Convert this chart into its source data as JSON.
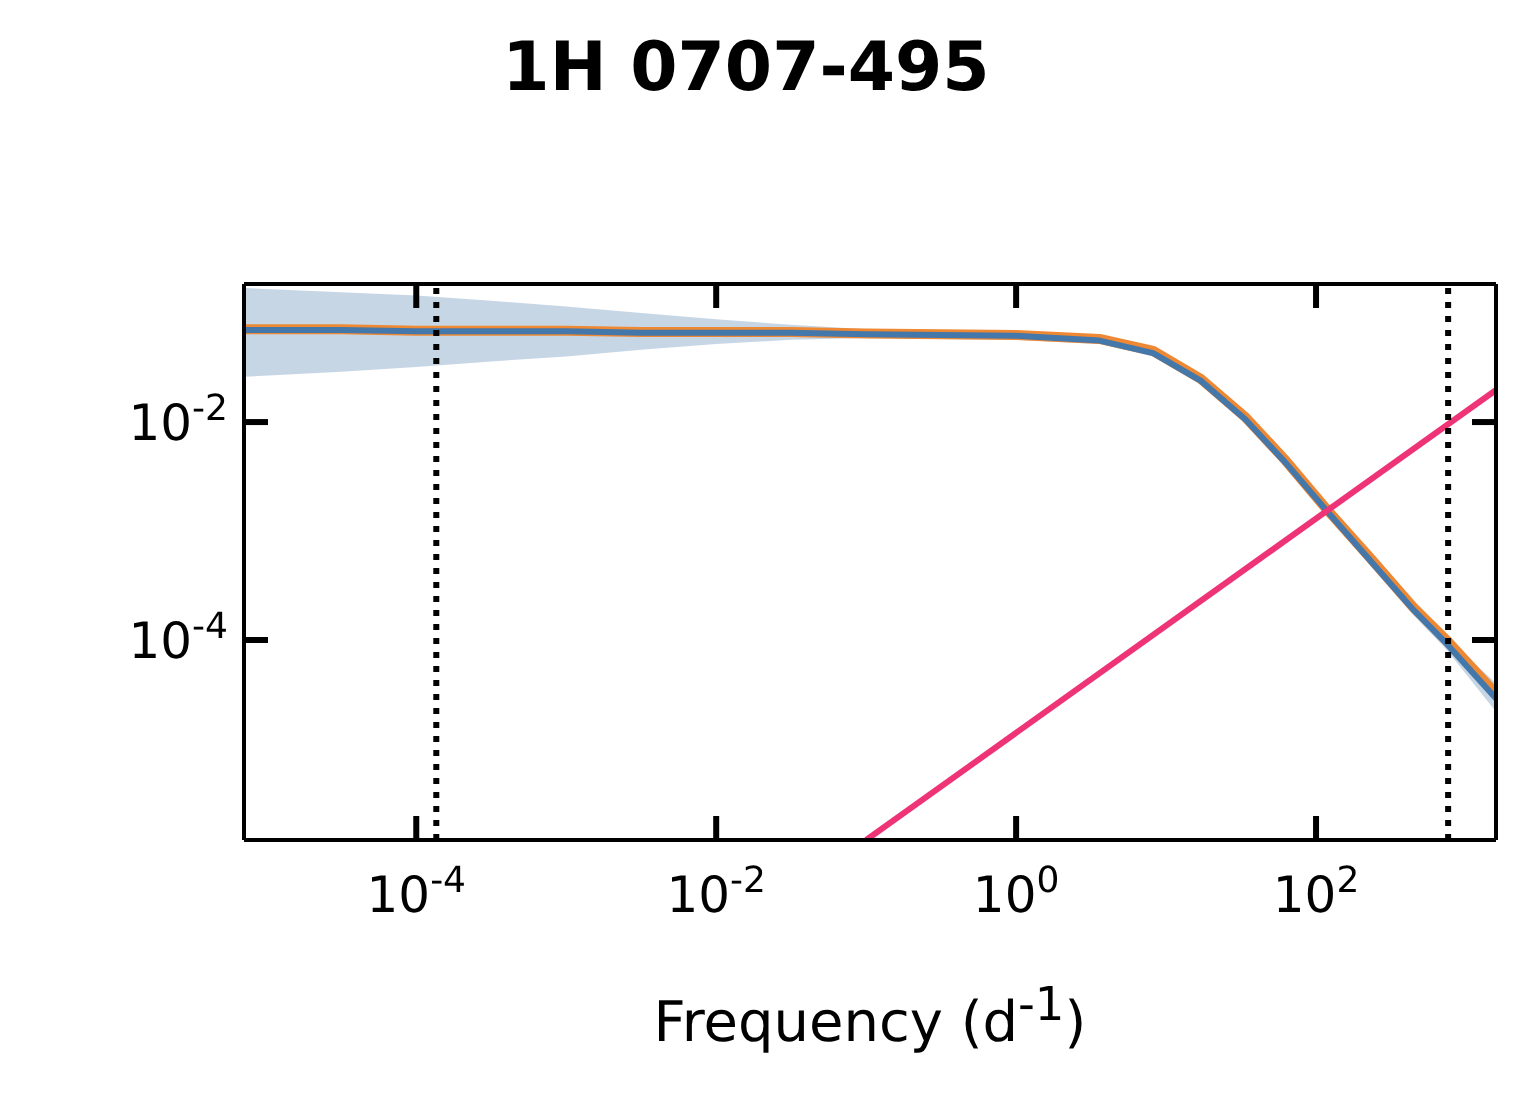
{
  "chart_data": {
    "type": "line",
    "title": "1H 0707-495",
    "xlabel": "Frequency (d$^{-1}$)",
    "log": "xy",
    "marker": "none",
    "line_style": "solid",
    "xlim": [
      7.1e-06,
      1585
    ],
    "ylim": [
      1.46e-06,
      0.185
    ],
    "xticks": [
      {
        "value": 0.0001,
        "label": "10$^{-4}$"
      },
      {
        "value": 0.01,
        "label": "10$^{-2}$"
      },
      {
        "value": 1,
        "label": "10$^{0}$"
      },
      {
        "value": 100,
        "label": "10$^{2}$"
      }
    ],
    "yticks": [
      {
        "value": 0.01,
        "label": "10$^{-2}$"
      },
      {
        "value": 0.0001,
        "label": "10$^{-4}$"
      }
    ],
    "x": [
      7.1e-06,
      3.16e-05,
      0.0001,
      0.000316,
      0.001,
      0.00316,
      0.01,
      0.0316,
      0.1,
      0.316,
      1,
      3.6,
      8.2,
      17,
      34,
      63,
      117,
      240,
      445,
      740,
      1585
    ],
    "series": [
      {
        "color": "#ee8833",
        "values": [
          0.071,
          0.071,
          0.069,
          0.069,
          0.069,
          0.067,
          0.067,
          0.067,
          0.065,
          0.064,
          0.063,
          0.058,
          0.045,
          0.025,
          0.011,
          0.0044,
          0.0016,
          0.00053,
          0.0002,
          0.0001,
          3.2e-05
        ]
      },
      {
        "color": "#4477aa",
        "values": [
          0.07,
          0.07,
          0.068,
          0.068,
          0.068,
          0.066,
          0.066,
          0.066,
          0.064,
          0.063,
          0.062,
          0.056,
          0.043,
          0.024,
          0.0105,
          0.0042,
          0.00155,
          0.0005,
          0.00019,
          9.3e-05,
          2.9e-05
        ],
        "lower": [
          0.026,
          0.029,
          0.032,
          0.036,
          0.04,
          0.046,
          0.052,
          0.057,
          0.059,
          0.058,
          0.057,
          0.052,
          0.04,
          0.022,
          0.0097,
          0.0039,
          0.00143,
          0.00045,
          0.00017,
          8.2e-05,
          2.2e-05
        ],
        "upper": [
          0.17,
          0.155,
          0.145,
          0.13,
          0.115,
          0.1,
          0.088,
          0.078,
          0.071,
          0.068,
          0.067,
          0.06,
          0.046,
          0.026,
          0.0114,
          0.0045,
          0.00168,
          0.00056,
          0.00021,
          0.000106,
          4e-05
        ]
      },
      {
        "color": "#ee3377",
        "x": [
          0.1,
          1585
        ],
        "values": [
          1.46e-06,
          0.0197
        ]
      }
    ],
    "ref_lines": [
      {
        "axis": "x",
        "value": 0.000136,
        "color": "#000000",
        "line_style": "dotted"
      },
      {
        "axis": "x",
        "value": 760,
        "color": "#000000",
        "line_style": "dotted"
      }
    ]
  }
}
